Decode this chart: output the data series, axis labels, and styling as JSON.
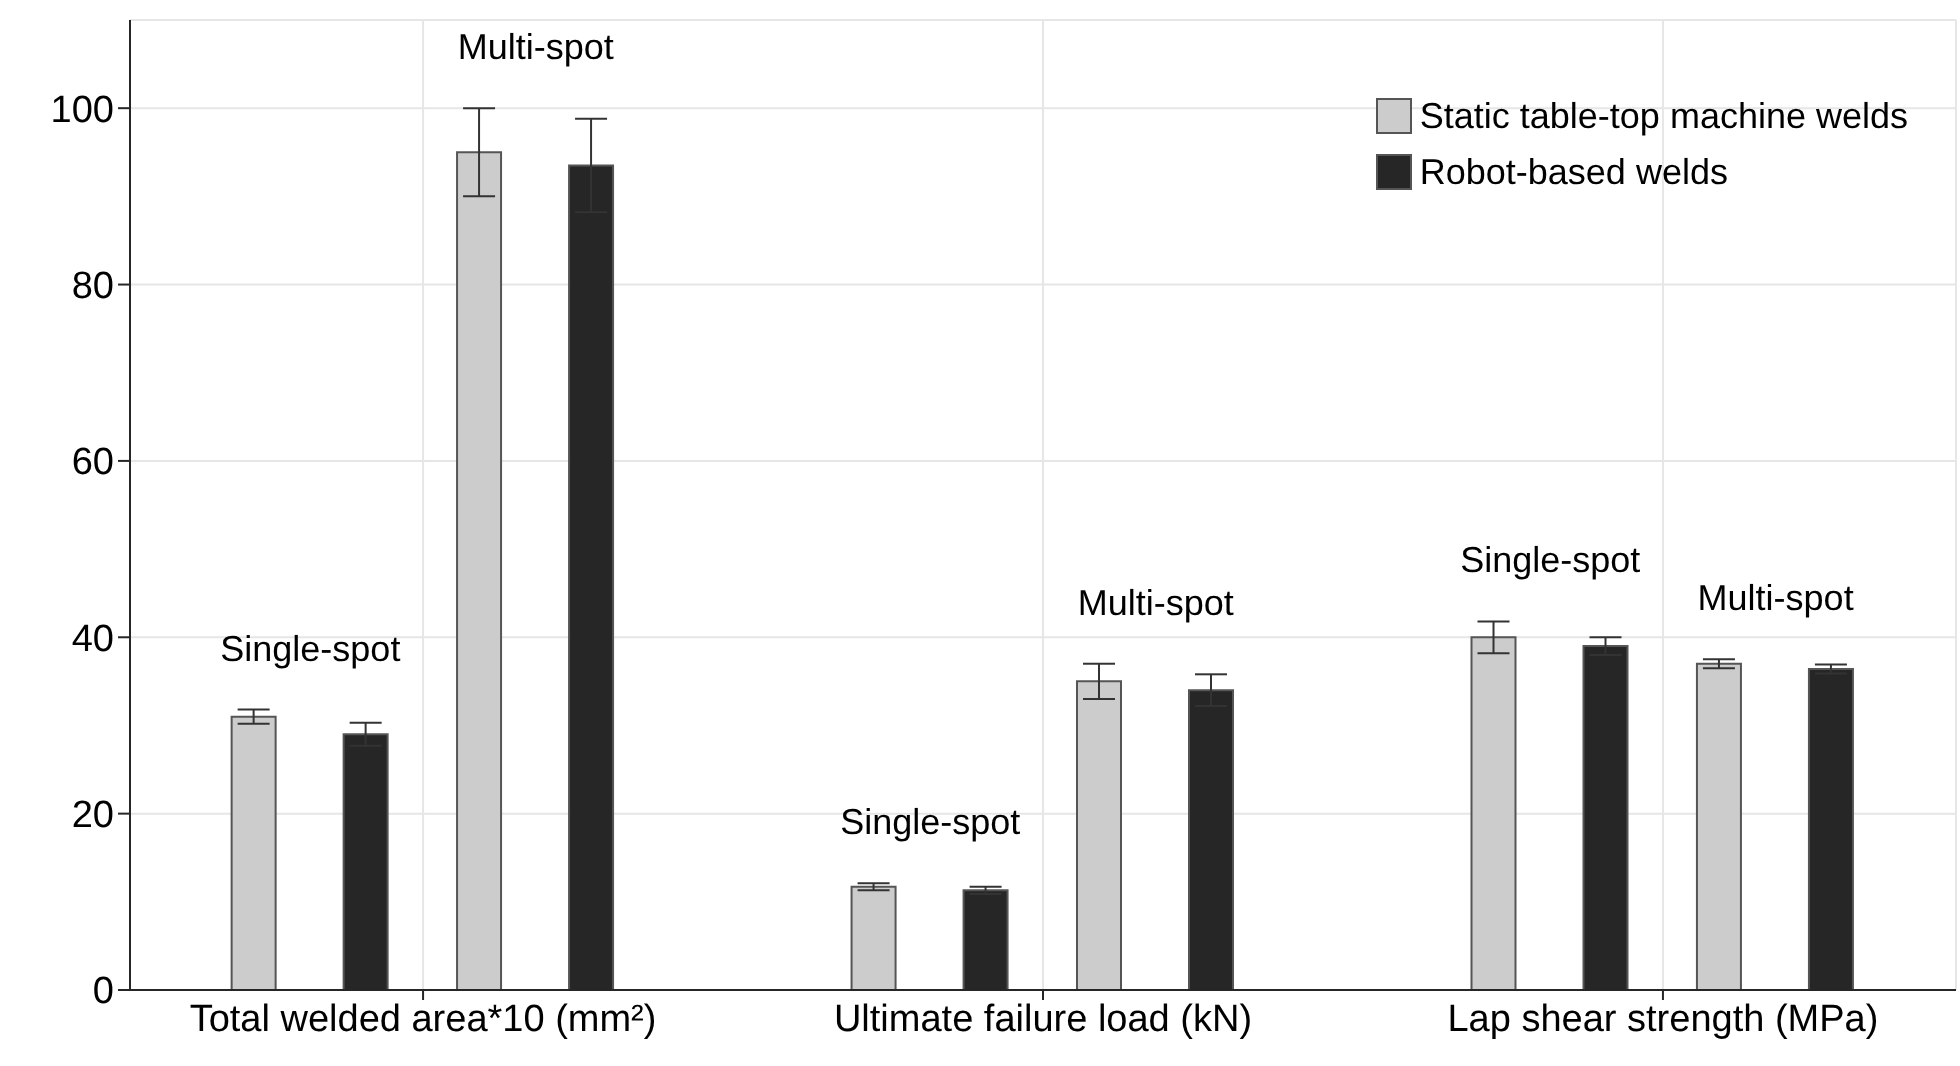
{
  "chart_data": {
    "type": "bar",
    "categories": [
      "Single-spot",
      "Multi-spot",
      "Single-spot",
      "Multi-spot",
      "Single-spot",
      "Multi-spot"
    ],
    "ylim": [
      0,
      110
    ],
    "yticks": [
      0,
      20,
      40,
      60,
      80,
      100
    ],
    "grid": true,
    "legend": "top right",
    "series": [
      {
        "name": "Static table-top machine welds",
        "color": "#cccccc",
        "values": [
          31,
          95,
          11.7,
          35,
          40,
          37
        ],
        "errors": [
          0.8,
          5,
          0.4,
          2,
          1.8,
          0.5
        ]
      },
      {
        "name": "Robot-based welds",
        "color": "#262626",
        "values": [
          29,
          93.5,
          11.3,
          34,
          39,
          36.4
        ],
        "errors": [
          1.3,
          5.3,
          0.4,
          1.8,
          1,
          0.5
        ]
      }
    ],
    "annotations": [
      "Total welded area*10 (mm²)",
      "Ultimate failure load (kN)",
      "Lap shear strength (MPa)"
    ]
  }
}
